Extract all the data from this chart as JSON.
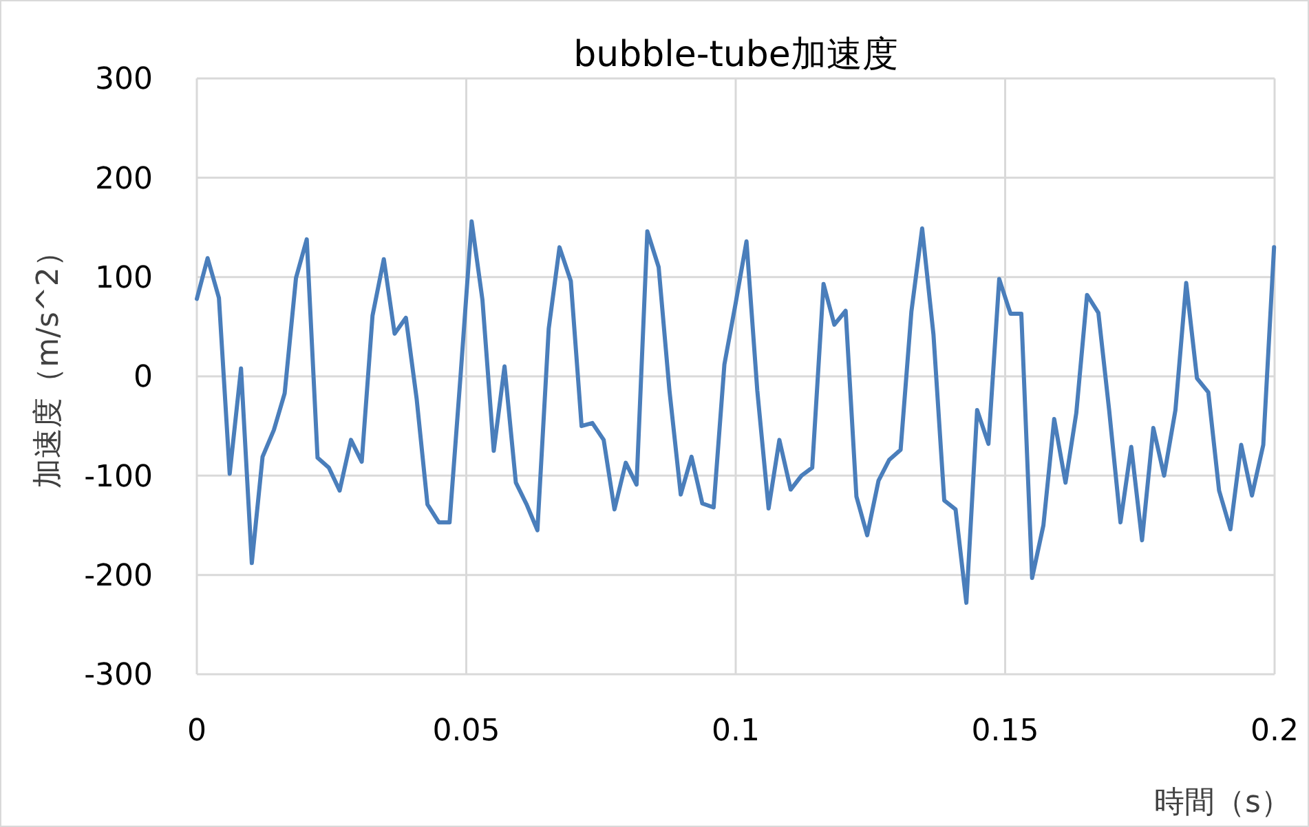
{
  "chart_data": {
    "type": "line",
    "title": "bubble-tube加速度",
    "xlabel": "時間（s）",
    "ylabel": "加速度（m/s^2）",
    "x": [
      0,
      0.002,
      0.0041,
      0.0061,
      0.0082,
      0.0102,
      0.0122,
      0.0143,
      0.0163,
      0.0184,
      0.0204,
      0.0224,
      0.0245,
      0.0265,
      0.0286,
      0.0306,
      0.0326,
      0.0347,
      0.0367,
      0.0388,
      0.0408,
      0.0428,
      0.0449,
      0.0469,
      0.049,
      0.051,
      0.053,
      0.0551,
      0.0571,
      0.0592,
      0.0612,
      0.0632,
      0.0653,
      0.0673,
      0.0694,
      0.0714,
      0.0734,
      0.0755,
      0.0775,
      0.0796,
      0.0816,
      0.0836,
      0.0857,
      0.0877,
      0.0898,
      0.0918,
      0.0938,
      0.0959,
      0.0979,
      0.1,
      0.102,
      0.104,
      0.1061,
      0.1081,
      0.1102,
      0.1122,
      0.1142,
      0.1163,
      0.1183,
      0.1204,
      0.1224,
      0.1244,
      0.1265,
      0.1285,
      0.1306,
      0.1326,
      0.1346,
      0.1367,
      0.1387,
      0.1408,
      0.1428,
      0.1448,
      0.1469,
      0.1489,
      0.151,
      0.153,
      0.155,
      0.1571,
      0.1591,
      0.1612,
      0.1632,
      0.1652,
      0.1673,
      0.1693,
      0.1714,
      0.1734,
      0.1754,
      0.1775,
      0.1795,
      0.1816,
      0.1836,
      0.1856,
      0.1877,
      0.1897,
      0.1918,
      0.1938,
      0.1958,
      0.1979,
      0.1999
    ],
    "series": [
      {
        "color": "#4a7ebb",
        "values": [
          78,
          119,
          79,
          -98,
          8,
          -188,
          -81,
          -54,
          -17,
          99,
          138,
          -82,
          -92,
          -115,
          -64,
          -86,
          61,
          118,
          43,
          59,
          -23,
          -129,
          -147,
          -147,
          5,
          156,
          77,
          -75,
          10,
          -107,
          -129,
          -155,
          48,
          130,
          96,
          -50,
          -47,
          -64,
          -134,
          -87,
          -109,
          146,
          110,
          -14,
          -119,
          -81,
          -128,
          -132,
          12,
          74,
          136,
          -14,
          -133,
          -64,
          -114,
          -100,
          -92,
          93,
          52,
          66,
          -121,
          -160,
          -105,
          -84,
          -74,
          65,
          149,
          42,
          -125,
          -134,
          -228,
          -34,
          -68,
          98,
          63,
          63,
          -203,
          -150,
          -43,
          -107,
          -37,
          82,
          64,
          -34,
          -147,
          -71,
          -165,
          -52,
          -100,
          -34,
          94,
          -2,
          -16,
          -115,
          -154,
          -69,
          -120,
          -69,
          130
        ]
      }
    ],
    "xlim": [
      0,
      0.2
    ],
    "xticks": [
      0,
      0.05,
      0.1,
      0.15,
      0.2
    ],
    "ylim": [
      -300,
      300
    ],
    "yticks": [
      -300,
      -200,
      -100,
      0,
      100,
      200,
      300
    ],
    "grid": true,
    "marker": "none",
    "line_style": "solid"
  }
}
